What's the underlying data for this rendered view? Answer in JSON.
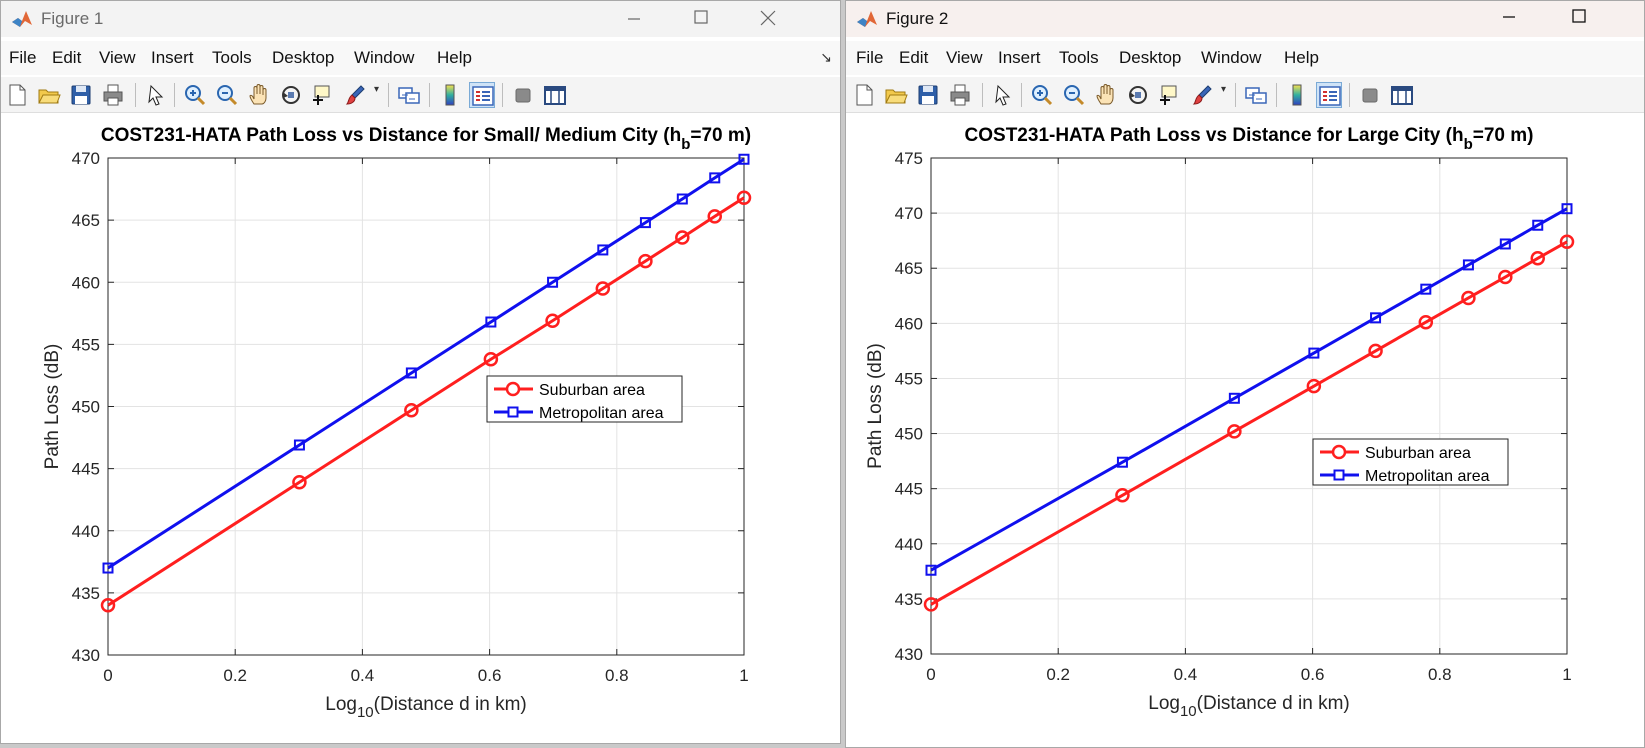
{
  "colors": {
    "series1": "#ff1f1f",
    "series2": "#1010ee",
    "grid": "#e3e3e3",
    "axis": "#262626"
  },
  "toolbar_icons": [
    "new-file-icon",
    "open-folder-icon",
    "save-icon",
    "print-icon",
    "pointer-icon",
    "zoom-in-icon",
    "zoom-out-icon",
    "pan-hand-icon",
    "rotate-3d-icon",
    "data-cursor-icon",
    "brush-icon",
    "link-plot-icon",
    "colorbar-icon",
    "legend-icon",
    "hide-plot-tools-icon",
    "show-plot-tools-icon"
  ],
  "windows": [
    {
      "title": "Figure 1",
      "menu": [
        "File",
        "Edit",
        "View",
        "Insert",
        "Tools",
        "Desktop",
        "Window",
        "Help"
      ],
      "corner_arrow": "↘",
      "chart_data": {
        "type": "line",
        "title_main": "COST231-HATA Path Loss vs Distance for Small/ Medium City (h",
        "title_sub": "b",
        "title_tail": "=70 m)",
        "xlabel_main": "Log",
        "xlabel_sub": "10",
        "xlabel_tail": "(Distance d in km)",
        "ylabel": "Path Loss (dB)",
        "xlim": [
          0,
          1
        ],
        "ylim": [
          430,
          470
        ],
        "xticks": [
          0,
          0.2,
          0.4,
          0.6,
          0.8,
          1
        ],
        "xtick_labels": [
          "0",
          "0.2",
          "0.4",
          "0.6",
          "0.8",
          "1"
        ],
        "yticks": [
          430,
          435,
          440,
          445,
          450,
          455,
          460,
          465,
          470
        ],
        "ytick_labels": [
          "430",
          "435",
          "440",
          "445",
          "450",
          "455",
          "460",
          "465",
          "470"
        ],
        "grid": true,
        "legend_position": "center-right",
        "x": [
          0,
          0.301,
          0.477,
          0.602,
          0.699,
          0.778,
          0.845,
          0.903,
          0.954,
          1
        ],
        "series": [
          {
            "name": "Suburban area",
            "marker": "circle",
            "values": [
              434.0,
              443.9,
              449.7,
              453.8,
              456.9,
              459.5,
              461.7,
              463.6,
              465.3,
              466.8
            ]
          },
          {
            "name": "Metropolitan area",
            "marker": "square",
            "values": [
              437.0,
              446.9,
              452.7,
              456.8,
              460.0,
              462.6,
              464.8,
              466.7,
              468.4,
              469.9
            ]
          }
        ]
      }
    },
    {
      "title": "Figure 2",
      "menu": [
        "File",
        "Edit",
        "View",
        "Insert",
        "Tools",
        "Desktop",
        "Window",
        "Help"
      ],
      "corner_arrow": "",
      "chart_data": {
        "type": "line",
        "title_main": "COST231-HATA Path Loss vs Distance for Large City (h",
        "title_sub": "b",
        "title_tail": "=70 m)",
        "xlabel_main": "Log",
        "xlabel_sub": "10",
        "xlabel_tail": "(Distance d in km)",
        "ylabel": "Path Loss (dB)",
        "xlim": [
          0,
          1
        ],
        "ylim": [
          430,
          475
        ],
        "xticks": [
          0,
          0.2,
          0.4,
          0.6,
          0.8,
          1
        ],
        "xtick_labels": [
          "0",
          "0.2",
          "0.4",
          "0.6",
          "0.8",
          "1"
        ],
        "yticks": [
          430,
          435,
          440,
          445,
          450,
          455,
          460,
          465,
          470,
          475
        ],
        "ytick_labels": [
          "430",
          "435",
          "440",
          "445",
          "450",
          "455",
          "460",
          "465",
          "470",
          "475"
        ],
        "grid": true,
        "legend_position": "lower-right",
        "x": [
          0,
          0.301,
          0.477,
          0.602,
          0.699,
          0.778,
          0.845,
          0.903,
          0.954,
          1
        ],
        "series": [
          {
            "name": "Suburban area",
            "marker": "circle",
            "values": [
              434.5,
              444.4,
              450.2,
              454.3,
              457.5,
              460.1,
              462.3,
              464.2,
              465.9,
              467.4
            ]
          },
          {
            "name": "Metropolitan area",
            "marker": "square",
            "values": [
              437.6,
              447.4,
              453.2,
              457.3,
              460.5,
              463.1,
              465.3,
              467.2,
              468.9,
              470.4
            ]
          }
        ]
      }
    }
  ]
}
